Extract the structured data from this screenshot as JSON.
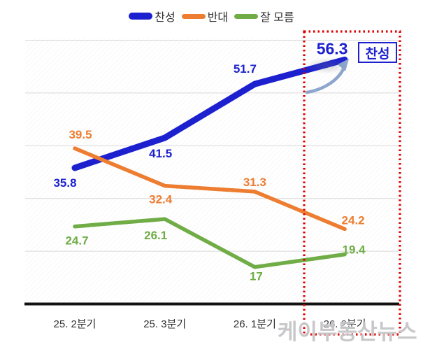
{
  "legend": {
    "items": [
      {
        "label": "찬성",
        "color": "#1c20cf"
      },
      {
        "label": "반대",
        "color": "#ED7D31"
      },
      {
        "label": "잘 모름",
        "color": "#70AD47"
      }
    ]
  },
  "chart_data": {
    "type": "line",
    "title": "",
    "xlabel": "",
    "ylabel": "",
    "categories": [
      "25. 2분기",
      "25. 3분기",
      "26. 1분기",
      "26. 2분기"
    ],
    "series": [
      {
        "name": "찬성",
        "color": "#1c20cf",
        "values": [
          35.8,
          41.5,
          51.7,
          56.3
        ]
      },
      {
        "name": "반대",
        "color": "#ED7D31",
        "values": [
          39.5,
          32.4,
          31.3,
          24.2
        ]
      },
      {
        "name": "잘 모름",
        "color": "#70AD47",
        "values": [
          24.7,
          26.1,
          17,
          19.4
        ]
      }
    ],
    "ylim": [
      10,
      60
    ],
    "grid": true,
    "gridline_step": 10,
    "legend_position": "top",
    "highlighted_category": "26. 2분기"
  },
  "annotation": {
    "highlight_label": "찬성",
    "highlighted_value": "56.3",
    "highlight_box_color": "#e00000",
    "arrow_color": "#8da6ce"
  },
  "watermark": {
    "text": "케이부동산뉴스"
  }
}
